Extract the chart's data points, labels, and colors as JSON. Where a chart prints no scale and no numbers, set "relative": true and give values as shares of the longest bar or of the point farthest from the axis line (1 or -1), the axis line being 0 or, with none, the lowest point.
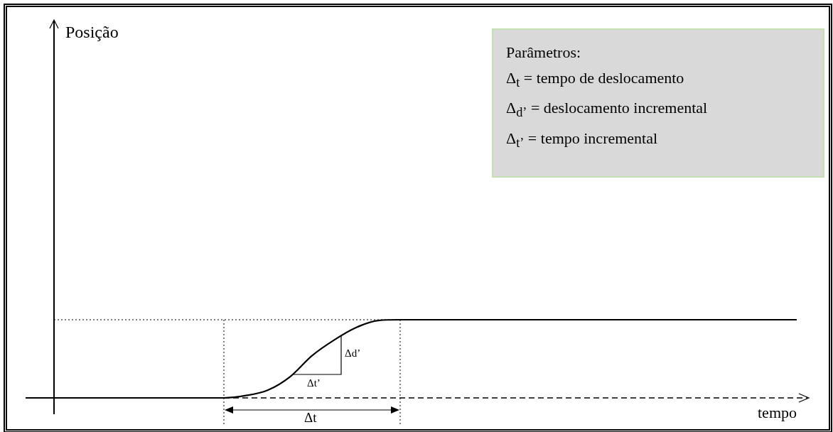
{
  "chart_data": {
    "type": "line",
    "relative": true,
    "xlabel": "tempo",
    "categories": [
      null,
      null,
      null,
      null,
      null,
      null,
      null,
      null,
      null,
      null,
      null,
      null,
      null,
      null,
      null,
      null,
      null,
      null,
      null,
      null,
      null,
      null,
      null,
      null,
      null,
      null,
      null,
      null,
      null,
      null,
      null,
      null,
      null,
      null,
      null,
      null
    ],
    "marker": "none",
    "line_style": "solid",
    "series": [
      {
        "color": "#000000",
        "values": [
          0,
          0,
          0,
          0,
          0,
          0,
          0,
          0,
          0,
          0,
          0.03,
          0.1,
          0.27,
          0.54,
          0.74,
          0.9,
          0.99,
          1,
          1,
          1,
          1,
          1,
          1,
          1,
          1,
          1,
          1,
          1,
          1,
          1,
          1,
          1,
          1,
          1,
          1,
          1
        ]
      }
    ],
    "ref_lines": [
      {
        "axis": "y",
        "value": 1,
        "color": "#000000",
        "line_style": "dotted"
      }
    ],
    "annotations": [
      "Posição",
      "Parâmetros:",
      "Δ$_{t}$ =  tempo de deslocamento",
      "Δ$_{d’}$ =  deslocamento incremental",
      "Δ$_{t’}$ =  tempo incremental",
      "Δd’",
      "Δt’",
      "Δt"
    ]
  }
}
